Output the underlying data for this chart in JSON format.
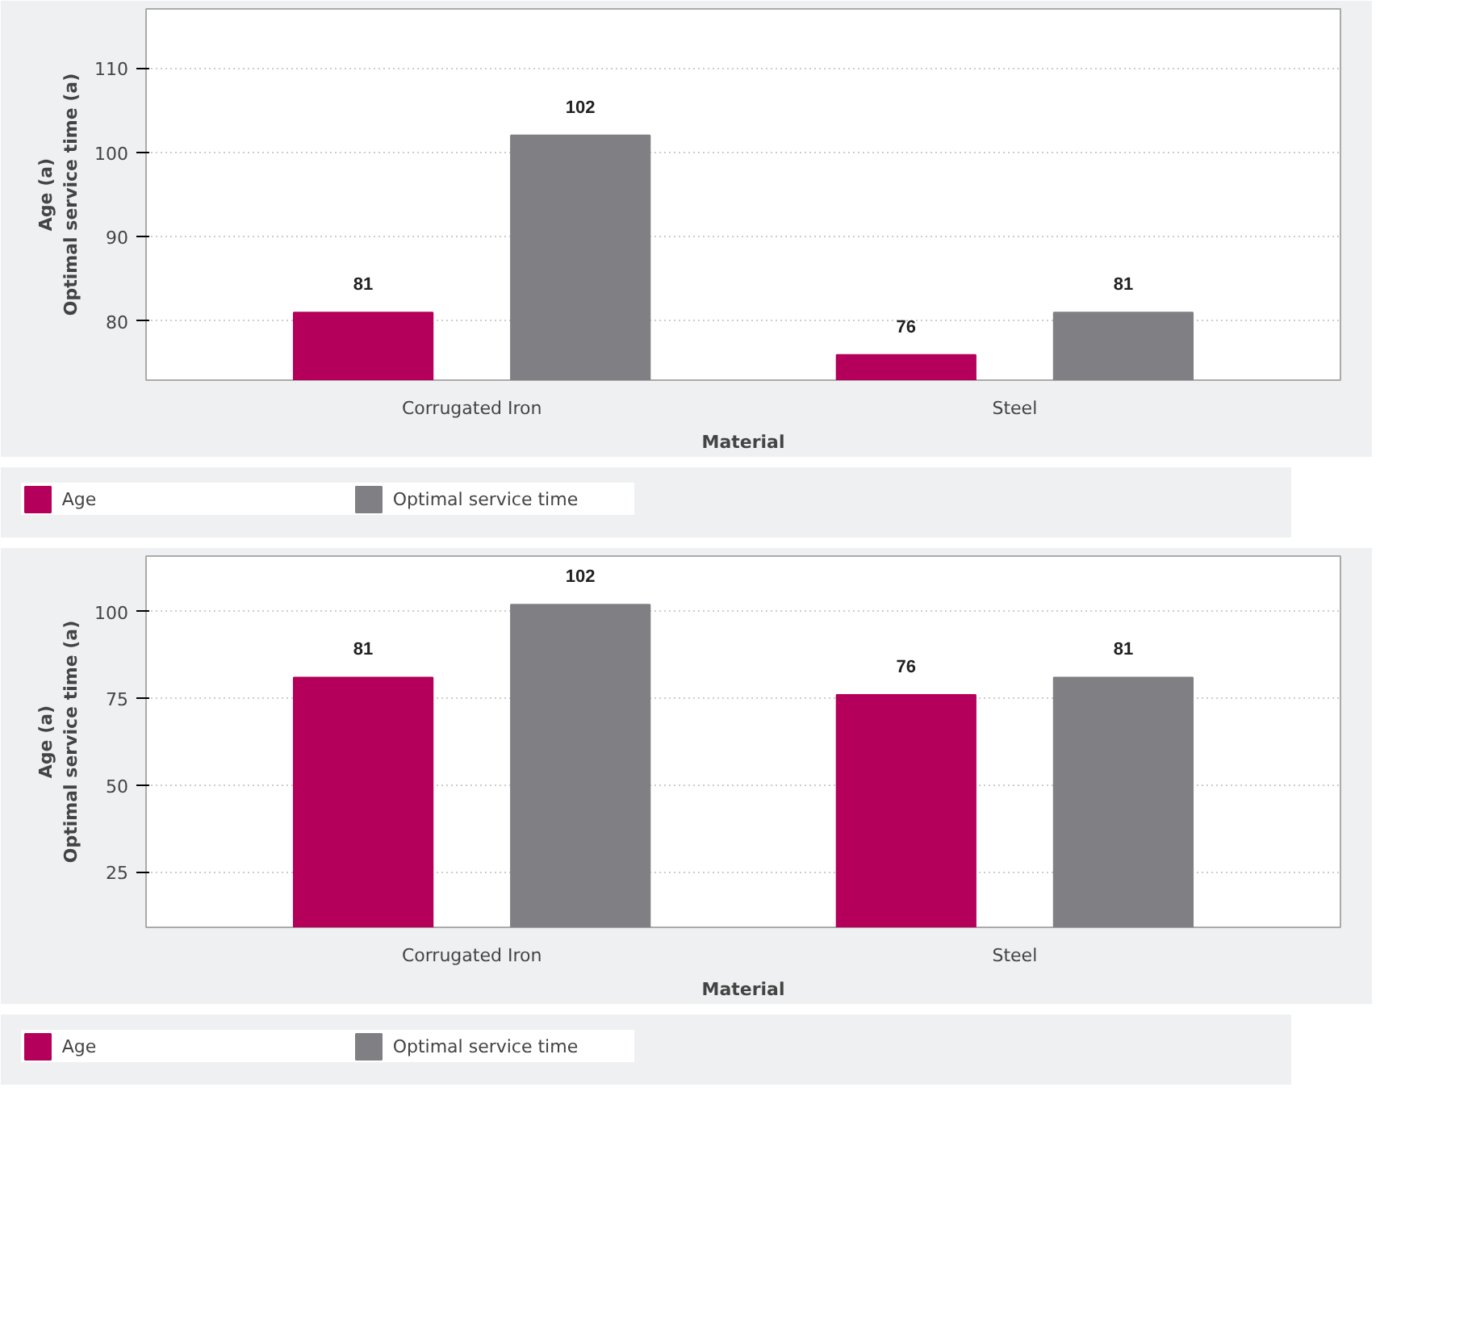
{
  "chart_data": [
    {
      "type": "bar",
      "xlabel": "Material",
      "ylabel": "Age (a)\nOptimal service time (a)",
      "categories": [
        "Corrugated Iron",
        "Steel"
      ],
      "series": [
        {
          "name": "Age",
          "color": "#b5005b",
          "values": [
            81,
            76
          ]
        },
        {
          "name": "Optimal service time",
          "color": "#808084",
          "values": [
            102,
            81
          ]
        }
      ],
      "ylim": [
        73,
        117
      ],
      "yticks": [
        80,
        90,
        100,
        110
      ],
      "grid": "y",
      "legend": "bottom",
      "data_labels": true
    },
    {
      "type": "bar",
      "xlabel": "Material",
      "ylabel": "Age (a)\nOptimal service time (a)",
      "categories": [
        "Corrugated Iron",
        "Steel"
      ],
      "series": [
        {
          "name": "Age",
          "color": "#b5005b",
          "values": [
            81,
            76
          ]
        },
        {
          "name": "Optimal service time",
          "color": "#808084",
          "values": [
            102,
            81
          ]
        }
      ],
      "ylim": [
        9,
        116
      ],
      "yticks": [
        25,
        50,
        75,
        100
      ],
      "grid": "y",
      "legend": "bottom",
      "data_labels": true
    }
  ]
}
